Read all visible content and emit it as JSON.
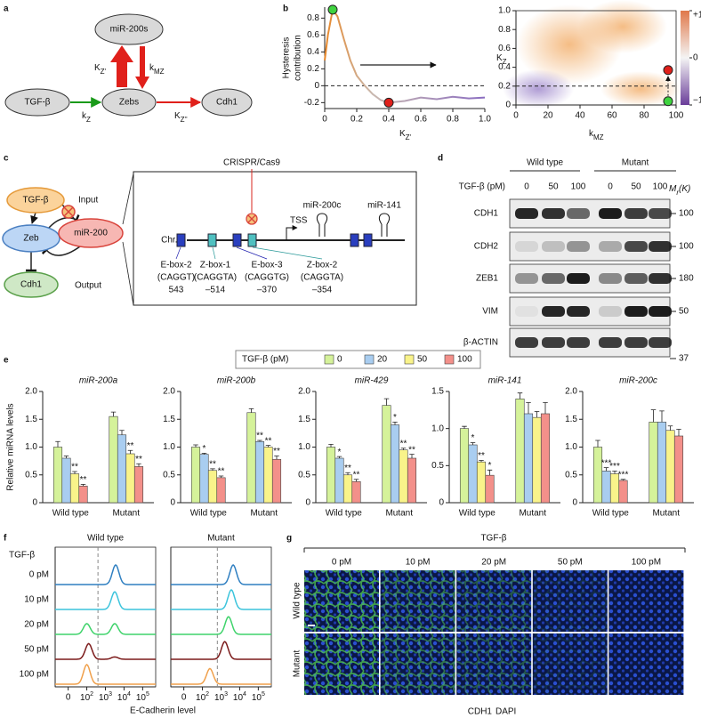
{
  "panel_labels": [
    "a",
    "b",
    "c",
    "d",
    "e",
    "f",
    "g"
  ],
  "network": {
    "nodes": [
      "miR-200s",
      "TGF-β",
      "Zebs",
      "Cdh1"
    ],
    "rates": [
      {
        "base": "K",
        "sub": "Z'"
      },
      {
        "base": "k",
        "sub": "MZ"
      },
      {
        "base": "k",
        "sub": "Z"
      },
      {
        "base": "K",
        "sub": "Z''"
      }
    ]
  },
  "circuit": {
    "nodes": [
      "TGF-β",
      "Zeb",
      "miR-200",
      "Cdh1"
    ],
    "input": "Input",
    "output": "Output"
  },
  "gene_map": {
    "trigger": "CRISPR/Cas9",
    "chromosome": "Chr.6",
    "tss": "TSS",
    "mirnas": [
      "miR-200c",
      "miR-141"
    ],
    "sites": [
      {
        "name": "E-box-2",
        "motif": "(CAGGT)",
        "position": "543"
      },
      {
        "name": "Z-box-1",
        "motif": "(CAGGTA)",
        "position": "–514"
      },
      {
        "name": "E-box-3",
        "motif": "(CAGGTG)",
        "position": "–370"
      },
      {
        "name": "Z-box-2",
        "motif": "(CAGGTA)",
        "position": "–354"
      }
    ]
  },
  "blot": {
    "genotypes": [
      "Wild type",
      "Mutant"
    ],
    "dose_label": "TGF-β (pM)",
    "lanes": [
      "0",
      "50",
      "100",
      "0",
      "50",
      "100"
    ],
    "mw_label": {
      "base": "M",
      "sub": "r",
      "suffix": "(K)"
    },
    "rows": [
      {
        "name": "CDH1",
        "mw": "100",
        "bands": [
          0.9,
          0.85,
          0.6,
          0.95,
          0.8,
          0.75
        ]
      },
      {
        "name": "CDH2",
        "mw": "100",
        "bands": [
          0.1,
          0.2,
          0.4,
          0.3,
          0.75,
          0.85
        ]
      },
      {
        "name": "ZEB1",
        "mw": "180",
        "bands": [
          0.4,
          0.6,
          0.95,
          0.45,
          0.65,
          0.85
        ]
      },
      {
        "name": "VIM",
        "mw": "50",
        "bands": [
          0.05,
          0.9,
          0.9,
          0.15,
          0.95,
          0.95
        ]
      },
      {
        "name": "β-ACTIN",
        "mw": "37",
        "bands": [
          0.8,
          0.8,
          0.8,
          0.8,
          0.8,
          0.8
        ]
      }
    ]
  },
  "bar_legend": {
    "title": "TGF-β (pM)",
    "items": [
      {
        "name": "0",
        "color": "#d5f29a"
      },
      {
        "name": "20",
        "color": "#a9cdf0"
      },
      {
        "name": "50",
        "color": "#f9f38a"
      },
      {
        "name": "100",
        "color": "#f3908a"
      }
    ]
  },
  "flow": {
    "ylabel": "TGF-β",
    "rows": [
      "0 pM",
      "10 pM",
      "20 pM",
      "50 pM",
      "100 pM"
    ],
    "colors": [
      "#2f7fc1",
      "#3cc4dc",
      "#3fd36b",
      "#7b1a1a",
      "#f0a04b"
    ],
    "xlabel": "E-Cadherin level"
  },
  "microscopy": {
    "treatment": "TGF-β",
    "doses": [
      "0 pM",
      "10 pM",
      "20 pM",
      "50 pM",
      "100 pM"
    ],
    "genotypes": [
      "Wild type",
      "Mutant"
    ],
    "stains": [
      "CDH1",
      "DAPI"
    ]
  },
  "chart_data": [
    {
      "type": "line",
      "ylabel": [
        "Hysteresis",
        "contribution"
      ],
      "xlabel": {
        "base": "K",
        "sub": "Z'"
      },
      "x": [
        0,
        0.02,
        0.05,
        0.08,
        0.12,
        0.16,
        0.2,
        0.25,
        0.3,
        0.35,
        0.4,
        0.5,
        0.6,
        0.7,
        0.8,
        0.9,
        1.0
      ],
      "values": [
        0.3,
        0.6,
        0.9,
        0.82,
        0.55,
        0.3,
        0.12,
        0,
        -0.1,
        -0.17,
        -0.2,
        -0.18,
        -0.14,
        -0.16,
        -0.13,
        -0.15,
        -0.14
      ],
      "xlim": [
        0,
        1
      ],
      "ylim": [
        -0.27,
        0.93
      ],
      "xticks": [
        0,
        0.2,
        0.4,
        0.6,
        0.8,
        {
          "value": 1,
          "label": "1.0"
        }
      ],
      "yticks": [
        -0.2,
        0,
        0.2,
        0.4,
        0.6,
        0.8
      ],
      "reference_line": 0,
      "markers": [
        {
          "x": 0.05,
          "y": 0.9,
          "color": "#3fd33f"
        },
        {
          "x": 0.4,
          "y": -0.2,
          "color": "#e0201b"
        }
      ]
    },
    {
      "type": "scatter",
      "xlabel": {
        "base": "k",
        "sub": "MZ"
      },
      "ylabel": {
        "base": "K",
        "sub": "Z"
      },
      "xlim": [
        0,
        100
      ],
      "ylim": [
        0,
        1
      ],
      "xticks": [
        0,
        20,
        40,
        60,
        80,
        100
      ],
      "yticks": [
        0,
        0.2,
        0.4,
        0.6,
        0.8,
        {
          "value": 1,
          "label": "1.0"
        }
      ],
      "reference_line": 0.2,
      "markers": [
        {
          "x": 95,
          "y": 0.04,
          "color": "#3fd33f"
        },
        {
          "x": 95,
          "y": 0.37,
          "color": "#e0201b"
        }
      ],
      "colorbar": {
        "lim": [
          -1,
          1
        ],
        "ticks": [
          {
            "value": 1,
            "label": "+1"
          },
          0,
          {
            "value": -1,
            "label": "−1"
          }
        ]
      }
    },
    {
      "type": "bar",
      "title": "miR-200a",
      "title_color": "#e0201b",
      "ylabel": "Relative miRNA levels",
      "categories": [
        "Wild type",
        "Mutant"
      ],
      "ylim": [
        0,
        2
      ],
      "yticks": [
        0,
        0.5,
        {
          "value": 1,
          "label": "1.0"
        },
        1.5,
        {
          "value": 2,
          "label": "2.0"
        }
      ],
      "series": [
        {
          "values": [
            1.0,
            1.55
          ],
          "errors": [
            0.1,
            0.08
          ],
          "stars": [
            null,
            null
          ]
        },
        {
          "values": [
            0.8,
            1.22
          ],
          "errors": [
            0.04,
            0.08
          ],
          "stars": [
            null,
            null
          ]
        },
        {
          "values": [
            0.52,
            0.88
          ],
          "errors": [
            0.04,
            0.06
          ],
          "stars": [
            "**",
            "**"
          ]
        },
        {
          "values": [
            0.3,
            0.65
          ],
          "errors": [
            0.03,
            0.05
          ],
          "stars": [
            "**",
            "**"
          ]
        }
      ]
    },
    {
      "type": "bar",
      "title": "miR-200b",
      "title_color": "#e0201b",
      "categories": [
        "Wild type",
        "Mutant"
      ],
      "ylim": [
        0,
        2
      ],
      "yticks": [
        0,
        0.5,
        {
          "value": 1,
          "label": "1.0"
        },
        1.5,
        {
          "value": 2,
          "label": "2.0"
        }
      ],
      "series": [
        {
          "values": [
            1.0,
            1.62
          ],
          "errors": [
            0.04,
            0.07
          ],
          "stars": [
            null,
            null
          ]
        },
        {
          "values": [
            0.87,
            1.1
          ],
          "errors": [
            0.02,
            0.02
          ],
          "stars": [
            "*",
            "**"
          ]
        },
        {
          "values": [
            0.58,
            1.0
          ],
          "errors": [
            0.03,
            0.03
          ],
          "stars": [
            "**",
            "**"
          ]
        },
        {
          "values": [
            0.45,
            0.78
          ],
          "errors": [
            0.03,
            0.06
          ],
          "stars": [
            "**",
            "**"
          ]
        }
      ]
    },
    {
      "type": "bar",
      "title": "miR-429",
      "title_color": "#e0201b",
      "categories": [
        "Wild type",
        "Mutant"
      ],
      "ylim": [
        0,
        2
      ],
      "yticks": [
        0,
        0.5,
        {
          "value": 1,
          "label": "1.0"
        },
        1.5,
        {
          "value": 2,
          "label": "2.0"
        }
      ],
      "series": [
        {
          "values": [
            1.0,
            1.75
          ],
          "errors": [
            0.05,
            0.12
          ],
          "stars": [
            null,
            null
          ]
        },
        {
          "values": [
            0.8,
            1.4
          ],
          "errors": [
            0.03,
            0.05
          ],
          "stars": [
            "*",
            "*"
          ]
        },
        {
          "values": [
            0.5,
            0.95
          ],
          "errors": [
            0.04,
            0.03
          ],
          "stars": [
            "**",
            "**"
          ]
        },
        {
          "values": [
            0.38,
            0.8
          ],
          "errors": [
            0.04,
            0.07
          ],
          "stars": [
            "**",
            "**"
          ]
        }
      ]
    },
    {
      "type": "bar",
      "title": "miR-141",
      "title_color": "#2323b0",
      "categories": [
        "Wild type",
        "Mutant"
      ],
      "ylim": [
        0,
        1.5
      ],
      "yticks": [
        0,
        0.5,
        {
          "value": 1,
          "label": "1.0"
        },
        1.5
      ],
      "series": [
        {
          "values": [
            1.0,
            1.4
          ],
          "errors": [
            0.03,
            0.08
          ],
          "stars": [
            null,
            null
          ]
        },
        {
          "values": [
            0.78,
            1.2
          ],
          "errors": [
            0.03,
            0.15
          ],
          "stars": [
            "*",
            null
          ]
        },
        {
          "values": [
            0.55,
            1.15
          ],
          "errors": [
            0.02,
            0.08
          ],
          "stars": [
            "**",
            null
          ]
        },
        {
          "values": [
            0.37,
            1.2
          ],
          "errors": [
            0.07,
            0.15
          ],
          "stars": [
            "*",
            null
          ]
        }
      ]
    },
    {
      "type": "bar",
      "title": "miR-200c",
      "title_color": "#2323b0",
      "categories": [
        "Wild type",
        "Mutant"
      ],
      "ylim": [
        0,
        2
      ],
      "yticks": [
        0,
        0.5,
        {
          "value": 1,
          "label": "1.0"
        },
        1.5,
        {
          "value": 2,
          "label": "2.0"
        }
      ],
      "series": [
        {
          "values": [
            1.0,
            1.45
          ],
          "errors": [
            0.12,
            0.22
          ],
          "stars": [
            null,
            null
          ]
        },
        {
          "values": [
            0.57,
            1.45
          ],
          "errors": [
            0.06,
            0.2
          ],
          "stars": [
            "***",
            null
          ]
        },
        {
          "values": [
            0.52,
            1.3
          ],
          "errors": [
            0.05,
            0.08
          ],
          "stars": [
            "***",
            null
          ]
        },
        {
          "values": [
            0.4,
            1.2
          ],
          "errors": [
            0.02,
            0.12
          ],
          "stars": [
            "***",
            null
          ]
        }
      ]
    },
    {
      "type": "density",
      "title": "Wild type",
      "xlim": [
        0.3,
        5.7
      ],
      "xticks": [
        {
          "value": 1,
          "label": "0"
        },
        {
          "value": 2,
          "label": "10",
          "sup": "2"
        },
        {
          "value": 3,
          "label": "10",
          "sup": "3"
        },
        {
          "value": 4,
          "label": "10",
          "sup": "4"
        },
        {
          "value": 5,
          "label": "10",
          "sup": "5"
        }
      ],
      "threshold": 2.6,
      "curves": [
        {
          "centers": [
            3.55
          ],
          "heights": [
            1
          ]
        },
        {
          "centers": [
            3.5
          ],
          "heights": [
            0.9
          ]
        },
        {
          "centers": [
            2.0,
            3.5
          ],
          "heights": [
            0.55,
            0.55
          ]
        },
        {
          "centers": [
            2.1,
            3.5
          ],
          "heights": [
            0.8,
            0.12
          ]
        },
        {
          "centers": [
            2.0
          ],
          "heights": [
            1
          ]
        }
      ]
    },
    {
      "type": "density",
      "title": "Mutant",
      "xlim": [
        0.3,
        5.7
      ],
      "xticks": [
        {
          "value": 1,
          "label": "0"
        },
        {
          "value": 2,
          "label": "10",
          "sup": "2"
        },
        {
          "value": 3,
          "label": "10",
          "sup": "3"
        },
        {
          "value": 4,
          "label": "10",
          "sup": "4"
        },
        {
          "value": 5,
          "label": "10",
          "sup": "5"
        }
      ],
      "threshold": 2.8,
      "curves": [
        {
          "centers": [
            3.65
          ],
          "heights": [
            1
          ]
        },
        {
          "centers": [
            3.55
          ],
          "heights": [
            1
          ]
        },
        {
          "centers": [
            3.4
          ],
          "heights": [
            0.9
          ]
        },
        {
          "centers": [
            3.2
          ],
          "heights": [
            0.9
          ]
        },
        {
          "centers": [
            2.4
          ],
          "heights": [
            0.8
          ]
        }
      ]
    }
  ]
}
